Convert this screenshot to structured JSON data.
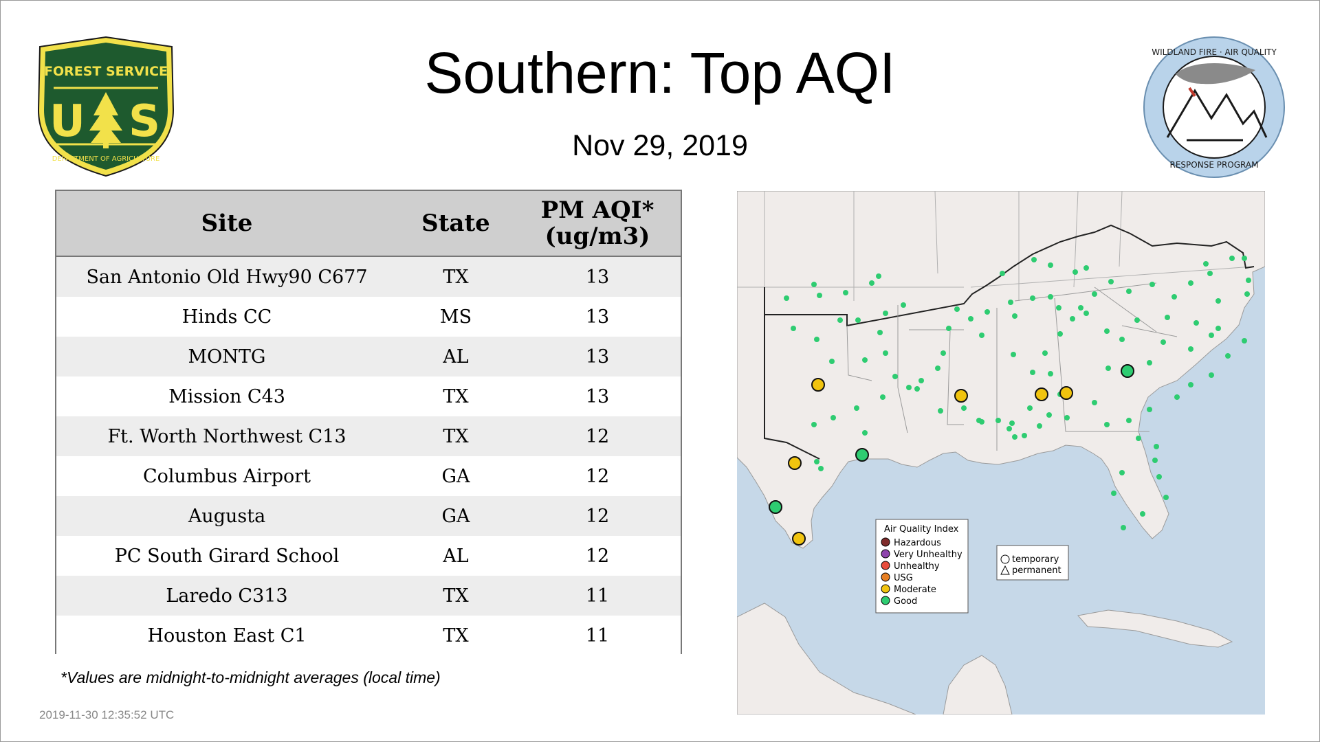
{
  "title": "Southern: Top AQI",
  "date": "Nov 29, 2019",
  "logos": {
    "forest_service": {
      "top": "FOREST SERVICE",
      "initials_left": "U",
      "initials_right": "S",
      "bottom": "DEPARTMENT OF AGRICULTURE"
    },
    "wildland_fire": {
      "top": "WILDLAND FIRE · AIR QUALITY",
      "bottom": "RESPONSE PROGRAM"
    }
  },
  "table": {
    "headers": {
      "site": "Site",
      "state": "State",
      "aqi_line1": "PM AQI*",
      "aqi_line2": "(ug/m3)"
    },
    "rows": [
      {
        "site": "San Antonio Old Hwy90 C677",
        "state": "TX",
        "aqi": "13"
      },
      {
        "site": "Hinds CC",
        "state": "MS",
        "aqi": "13"
      },
      {
        "site": "MONTG",
        "state": "AL",
        "aqi": "13"
      },
      {
        "site": "Mission C43",
        "state": "TX",
        "aqi": "13"
      },
      {
        "site": "Ft. Worth Northwest C13",
        "state": "TX",
        "aqi": "12"
      },
      {
        "site": "Columbus Airport",
        "state": "GA",
        "aqi": "12"
      },
      {
        "site": "Augusta",
        "state": "GA",
        "aqi": "12"
      },
      {
        "site": "PC South Girard School",
        "state": "AL",
        "aqi": "12"
      },
      {
        "site": "Laredo C313",
        "state": "TX",
        "aqi": "11"
      },
      {
        "site": "Houston East C1",
        "state": "TX",
        "aqi": "11"
      }
    ]
  },
  "footnote": "*Values are midnight-to-midnight averages (local time)",
  "timestamp": "2019-11-30 12:35:52 UTC",
  "map": {
    "legend": {
      "title": "Air Quality Index",
      "items": [
        {
          "label": "Hazardous",
          "color": "#7e2b2b"
        },
        {
          "label": "Very Unhealthy",
          "color": "#8e44ad"
        },
        {
          "label": "Unhealthy",
          "color": "#e74c3c"
        },
        {
          "label": "USG",
          "color": "#e67e22"
        },
        {
          "label": "Moderate",
          "color": "#f1c40f"
        },
        {
          "label": "Good",
          "color": "#2ecc71"
        }
      ]
    },
    "shape_legend": {
      "temporary": "temporary",
      "permanent": "permanent"
    },
    "colors": {
      "water": "#c6d8e8",
      "land": "#f0ecea",
      "good": "#2ecc71",
      "moderate": "#f1c40f"
    }
  }
}
